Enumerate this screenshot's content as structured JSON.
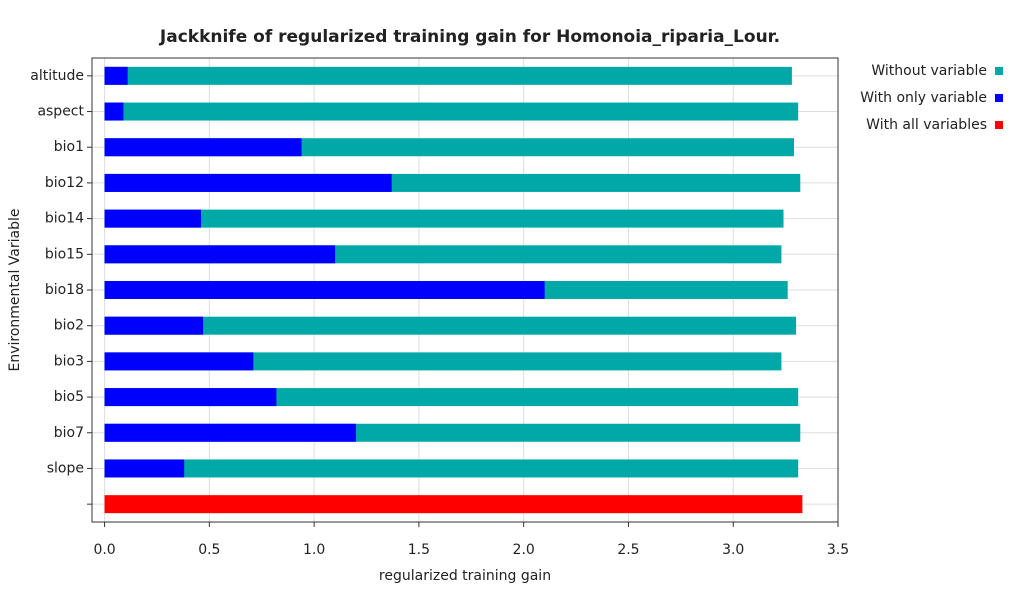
{
  "chart_data": {
    "type": "hbar",
    "title": "Jackknife of regularized training gain for Homonoia_riparia_Lour.",
    "x_label": "regularized training gain",
    "y_label": "Environmental Variable",
    "categories": [
      "altitude",
      "aspect",
      "bio1",
      "bio12",
      "bio14",
      "bio15",
      "bio18",
      "bio2",
      "bio3",
      "bio5",
      "bio7",
      "slope",
      null
    ],
    "series": [
      {
        "name": "Without variable",
        "color": "#00a8a8",
        "values": [
          3.28,
          3.31,
          3.29,
          3.32,
          3.24,
          3.23,
          3.26,
          3.3,
          3.23,
          3.31,
          3.32,
          3.31,
          null
        ]
      },
      {
        "name": "With only variable",
        "color": "#0000ff",
        "values": [
          0.11,
          0.09,
          0.94,
          1.37,
          0.46,
          1.1,
          2.1,
          0.47,
          0.71,
          0.82,
          1.2,
          0.38,
          null
        ]
      },
      {
        "name": "With all variables",
        "color": "#ff0000",
        "values": [
          null,
          null,
          null,
          null,
          null,
          null,
          null,
          null,
          null,
          null,
          null,
          null,
          3.33
        ]
      }
    ],
    "xlim": [
      -0.06,
      3.5
    ],
    "xticks": [
      {
        "value": 0,
        "label": "0.0"
      },
      0.5,
      {
        "value": 1,
        "label": "1.0"
      },
      1.5,
      {
        "value": 2,
        "label": "2.0"
      },
      2.5,
      {
        "value": 3,
        "label": "3.0"
      },
      3.5
    ],
    "grid": true,
    "legend": "top-right"
  }
}
